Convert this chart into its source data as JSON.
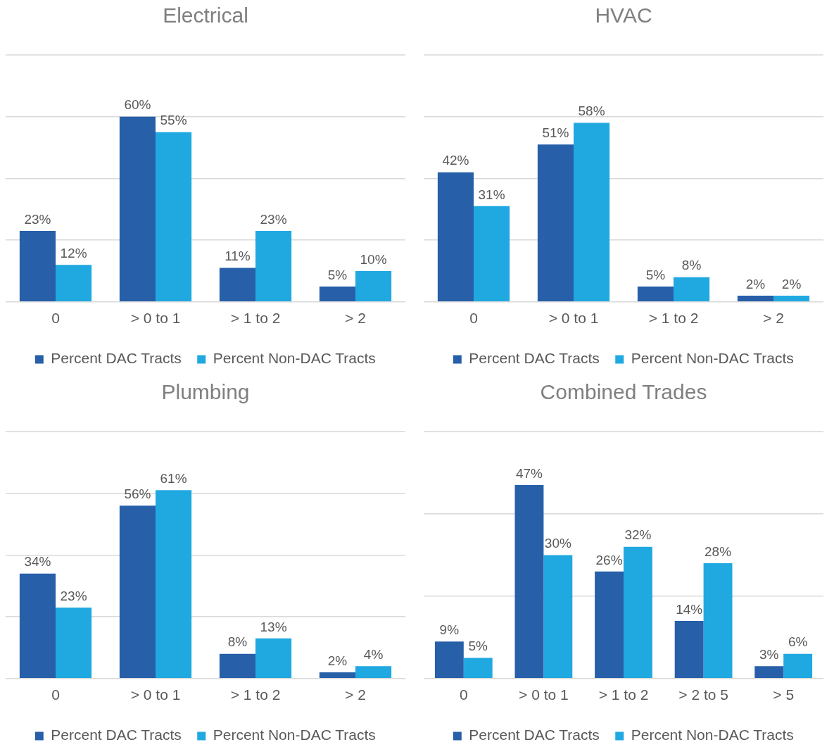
{
  "chart_data": [
    {
      "type": "bar",
      "title": "Electrical",
      "categories": [
        "0",
        "> 0 to 1",
        "> 1 to 2",
        "> 2"
      ],
      "series": [
        {
          "name": "Percent DAC Tracts",
          "color": "#275fa9",
          "values": [
            23,
            60,
            11,
            5
          ],
          "value_labels": [
            "23%",
            "60%",
            "11%",
            "5%"
          ]
        },
        {
          "name": "Percent Non-DAC Tracts",
          "color": "#20a9e1",
          "values": [
            12,
            55,
            23,
            10
          ],
          "value_labels": [
            "12%",
            "55%",
            "23%",
            "10%"
          ]
        }
      ],
      "ylim": [
        0,
        80
      ],
      "yticks": [
        {
          "value": 0,
          "label": null
        },
        {
          "value": 20,
          "label": null
        },
        {
          "value": 40,
          "label": null
        },
        {
          "value": 60,
          "label": null
        }
      ],
      "grid": "y",
      "legend": "bottom",
      "tick_labels": "x"
    },
    {
      "type": "bar",
      "title": "HVAC",
      "categories": [
        "0",
        "> 0 to 1",
        "> 1 to 2",
        "> 2"
      ],
      "series": [
        {
          "name": "Percent DAC Tracts",
          "color": "#275fa9",
          "values": [
            42,
            51,
            5,
            2
          ],
          "value_labels": [
            "42%",
            "51%",
            "5%",
            "2%"
          ]
        },
        {
          "name": "Percent Non-DAC Tracts",
          "color": "#20a9e1",
          "values": [
            31,
            58,
            8,
            2
          ],
          "value_labels": [
            "31%",
            "58%",
            "8%",
            "2%"
          ]
        }
      ],
      "ylim": [
        0,
        80
      ],
      "yticks": [
        {
          "value": 0,
          "label": null
        },
        {
          "value": 20,
          "label": null
        },
        {
          "value": 40,
          "label": null
        },
        {
          "value": 60,
          "label": null
        }
      ],
      "grid": "y",
      "legend": "bottom",
      "tick_labels": "x"
    },
    {
      "type": "bar",
      "title": "Plumbing",
      "categories": [
        "0",
        "> 0 to 1",
        "> 1 to 2",
        "> 2"
      ],
      "series": [
        {
          "name": "Percent DAC Tracts",
          "color": "#275fa9",
          "values": [
            34,
            56,
            8,
            2
          ],
          "value_labels": [
            "34%",
            "56%",
            "8%",
            "2%"
          ]
        },
        {
          "name": "Percent Non-DAC Tracts",
          "color": "#20a9e1",
          "values": [
            23,
            61,
            13,
            4
          ],
          "value_labels": [
            "23%",
            "61%",
            "13%",
            "4%"
          ]
        }
      ],
      "ylim": [
        0,
        80
      ],
      "yticks": [
        {
          "value": 0,
          "label": null
        },
        {
          "value": 20,
          "label": null
        },
        {
          "value": 40,
          "label": null
        },
        {
          "value": 60,
          "label": null
        }
      ],
      "grid": "y",
      "legend": "bottom",
      "tick_labels": "x"
    },
    {
      "type": "bar",
      "title": "Combined Trades",
      "categories": [
        "0",
        "> 0 to 1",
        "> 1 to 2",
        "> 2 to 5",
        "> 5"
      ],
      "series": [
        {
          "name": "Percent DAC Tracts",
          "color": "#275fa9",
          "values": [
            9,
            47,
            26,
            14,
            3
          ],
          "value_labels": [
            "9%",
            "47%",
            "26%",
            "14%",
            "3%"
          ]
        },
        {
          "name": "Percent Non-DAC Tracts",
          "color": "#20a9e1",
          "values": [
            5,
            30,
            32,
            28,
            6
          ],
          "value_labels": [
            "5%",
            "30%",
            "32%",
            "28%",
            "6%"
          ]
        }
      ],
      "ylim": [
        0,
        60
      ],
      "yticks": [
        {
          "value": 0,
          "label": null
        },
        {
          "value": 20,
          "label": null
        },
        {
          "value": 40,
          "label": null
        }
      ],
      "grid": "y",
      "legend": "bottom",
      "tick_labels": "x"
    }
  ]
}
